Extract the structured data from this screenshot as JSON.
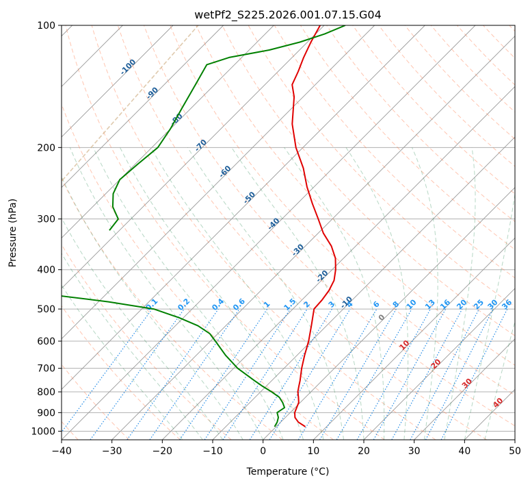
{
  "chart_data": {
    "type": "line",
    "title": "wetPf2_S225.2026.001.07.15.G04",
    "xlabel": "Temperature (°C)",
    "ylabel": "Pressure (hPa)",
    "xlim": [
      -40,
      50
    ],
    "ylim": [
      1050,
      100
    ],
    "yscale": "log",
    "x_ticks": [
      -40,
      -30,
      -20,
      -10,
      0,
      10,
      20,
      30,
      40,
      50
    ],
    "y_ticks": [
      100,
      200,
      300,
      400,
      500,
      600,
      700,
      800,
      900,
      1000
    ],
    "x_tick_labels": [
      "−40",
      "−30",
      "−20",
      "−10",
      "0",
      "10",
      "20",
      "30",
      "40",
      "50"
    ],
    "y_tick_labels": [
      "100",
      "200",
      "300",
      "400",
      "500",
      "600",
      "700",
      "800",
      "900",
      "1000"
    ],
    "grid": true,
    "skew": 45,
    "colors": {
      "temperature": "#e00000",
      "dewpoint": "#008000",
      "dry_adiabat": "#ff7f50",
      "moist_adiabat": "#2e8b57",
      "mixing_ratio": "#1e88e5",
      "isotherm_grid": "#999999",
      "tropo_curve": "#d2b48c",
      "label_dark": "#1f5f9a",
      "label_light": "#2196f3",
      "label_red": "#d62728",
      "label_gray": "#808080"
    },
    "series": [
      {
        "points": [
          {
            "p": 975,
            "t": 5.8
          },
          {
            "p": 950,
            "t": 3.5
          },
          {
            "p": 925,
            "t": 1.9
          },
          {
            "p": 900,
            "t": 0.9
          },
          {
            "p": 875,
            "t": 0.3
          },
          {
            "p": 850,
            "t": -0.3
          },
          {
            "p": 825,
            "t": -1.4
          },
          {
            "p": 800,
            "t": -2.6
          },
          {
            "p": 775,
            "t": -3.5
          },
          {
            "p": 750,
            "t": -4.4
          },
          {
            "p": 700,
            "t": -6.5
          },
          {
            "p": 650,
            "t": -8.5
          },
          {
            "p": 600,
            "t": -10.5
          },
          {
            "p": 550,
            "t": -13.0
          },
          {
            "p": 500,
            "t": -15.8
          },
          {
            "p": 475,
            "t": -16.0
          },
          {
            "p": 450,
            "t": -16.5
          },
          {
            "p": 425,
            "t": -17.5
          },
          {
            "p": 400,
            "t": -19.3
          },
          {
            "p": 375,
            "t": -21.6
          },
          {
            "p": 350,
            "t": -24.8
          },
          {
            "p": 325,
            "t": -29.0
          },
          {
            "p": 300,
            "t": -32.8
          },
          {
            "p": 275,
            "t": -37.0
          },
          {
            "p": 250,
            "t": -41.4
          },
          {
            "p": 225,
            "t": -45.8
          },
          {
            "p": 200,
            "t": -51.4
          },
          {
            "p": 175,
            "t": -56.8
          },
          {
            "p": 150,
            "t": -61.8
          },
          {
            "p": 140,
            "t": -64.6
          },
          {
            "p": 130,
            "t": -66.0
          },
          {
            "p": 120,
            "t": -67.7
          },
          {
            "p": 110,
            "t": -69.3
          },
          {
            "p": 100,
            "t": -70.8
          }
        ]
      },
      {
        "points": [
          {
            "p": 975,
            "t": -0.3
          },
          {
            "p": 950,
            "t": -0.7
          },
          {
            "p": 925,
            "t": -1.4
          },
          {
            "p": 900,
            "t": -2.6
          },
          {
            "p": 875,
            "t": -2.1
          },
          {
            "p": 850,
            "t": -3.5
          },
          {
            "p": 825,
            "t": -5.2
          },
          {
            "p": 800,
            "t": -7.8
          },
          {
            "p": 775,
            "t": -10.7
          },
          {
            "p": 750,
            "t": -13.5
          },
          {
            "p": 700,
            "t": -19.2
          },
          {
            "p": 650,
            "t": -24.2
          },
          {
            "p": 600,
            "t": -29.0
          },
          {
            "p": 575,
            "t": -31.6
          },
          {
            "p": 550,
            "t": -35.5
          },
          {
            "p": 525,
            "t": -40.9
          },
          {
            "p": 500,
            "t": -47.6
          },
          {
            "p": 480,
            "t": -58.0
          },
          {
            "p": 460,
            "t": -71.6
          }
        ]
      },
      {
        "points": [
          {
            "p": 320,
            "t": -72.0
          },
          {
            "p": 300,
            "t": -72.5
          },
          {
            "p": 280,
            "t": -76.0
          },
          {
            "p": 260,
            "t": -78.5
          },
          {
            "p": 240,
            "t": -80.0
          },
          {
            "p": 220,
            "t": -79.5
          },
          {
            "p": 200,
            "t": -78.8
          },
          {
            "p": 180,
            "t": -80.0
          },
          {
            "p": 160,
            "t": -81.8
          },
          {
            "p": 140,
            "t": -83.8
          },
          {
            "p": 125,
            "t": -85.5
          },
          {
            "p": 120,
            "t": -82.5
          },
          {
            "p": 115,
            "t": -76.0
          },
          {
            "p": 110,
            "t": -71.5
          },
          {
            "p": 105,
            "t": -68.2
          },
          {
            "p": 100,
            "t": -65.8
          }
        ]
      }
    ],
    "isotherm_labels": [
      {
        "t": -100,
        "text": "-100"
      },
      {
        "t": -90,
        "text": "-90"
      },
      {
        "t": -80,
        "text": "-80"
      },
      {
        "t": -70,
        "text": "-70"
      },
      {
        "t": -60,
        "text": "-60"
      },
      {
        "t": -50,
        "text": "-50"
      },
      {
        "t": -40,
        "text": "-40"
      },
      {
        "t": -30,
        "text": "-30"
      },
      {
        "t": -20,
        "text": "-20"
      },
      {
        "t": -10,
        "text": "-10"
      }
    ],
    "zero_isotherm_label": {
      "t": 0,
      "text": "0"
    },
    "warm_isotherm_labels": [
      {
        "t": 10,
        "text": "10"
      },
      {
        "t": 20,
        "text": "20"
      },
      {
        "t": 30,
        "text": "30"
      },
      {
        "t": 40,
        "text": "40"
      }
    ],
    "mixing_ratio_labels": [
      {
        "w": 0.1,
        "text": "0.1"
      },
      {
        "w": 0.2,
        "text": "0.2"
      },
      {
        "w": 0.4,
        "text": "0.4"
      },
      {
        "w": 0.6,
        "text": "0.6"
      },
      {
        "w": 1,
        "text": "1"
      },
      {
        "w": 1.5,
        "text": "1.5"
      },
      {
        "w": 2,
        "text": "2"
      },
      {
        "w": 3,
        "text": "3"
      },
      {
        "w": 4,
        "text": "4"
      },
      {
        "w": 6,
        "text": "6"
      },
      {
        "w": 8,
        "text": "8"
      },
      {
        "w": 10,
        "text": "10"
      },
      {
        "w": 13,
        "text": "13"
      },
      {
        "w": 16,
        "text": "16"
      },
      {
        "w": 20,
        "text": "20"
      },
      {
        "w": 25,
        "text": "25"
      },
      {
        "w": 30,
        "text": "30"
      },
      {
        "w": 36,
        "text": "36"
      }
    ]
  }
}
